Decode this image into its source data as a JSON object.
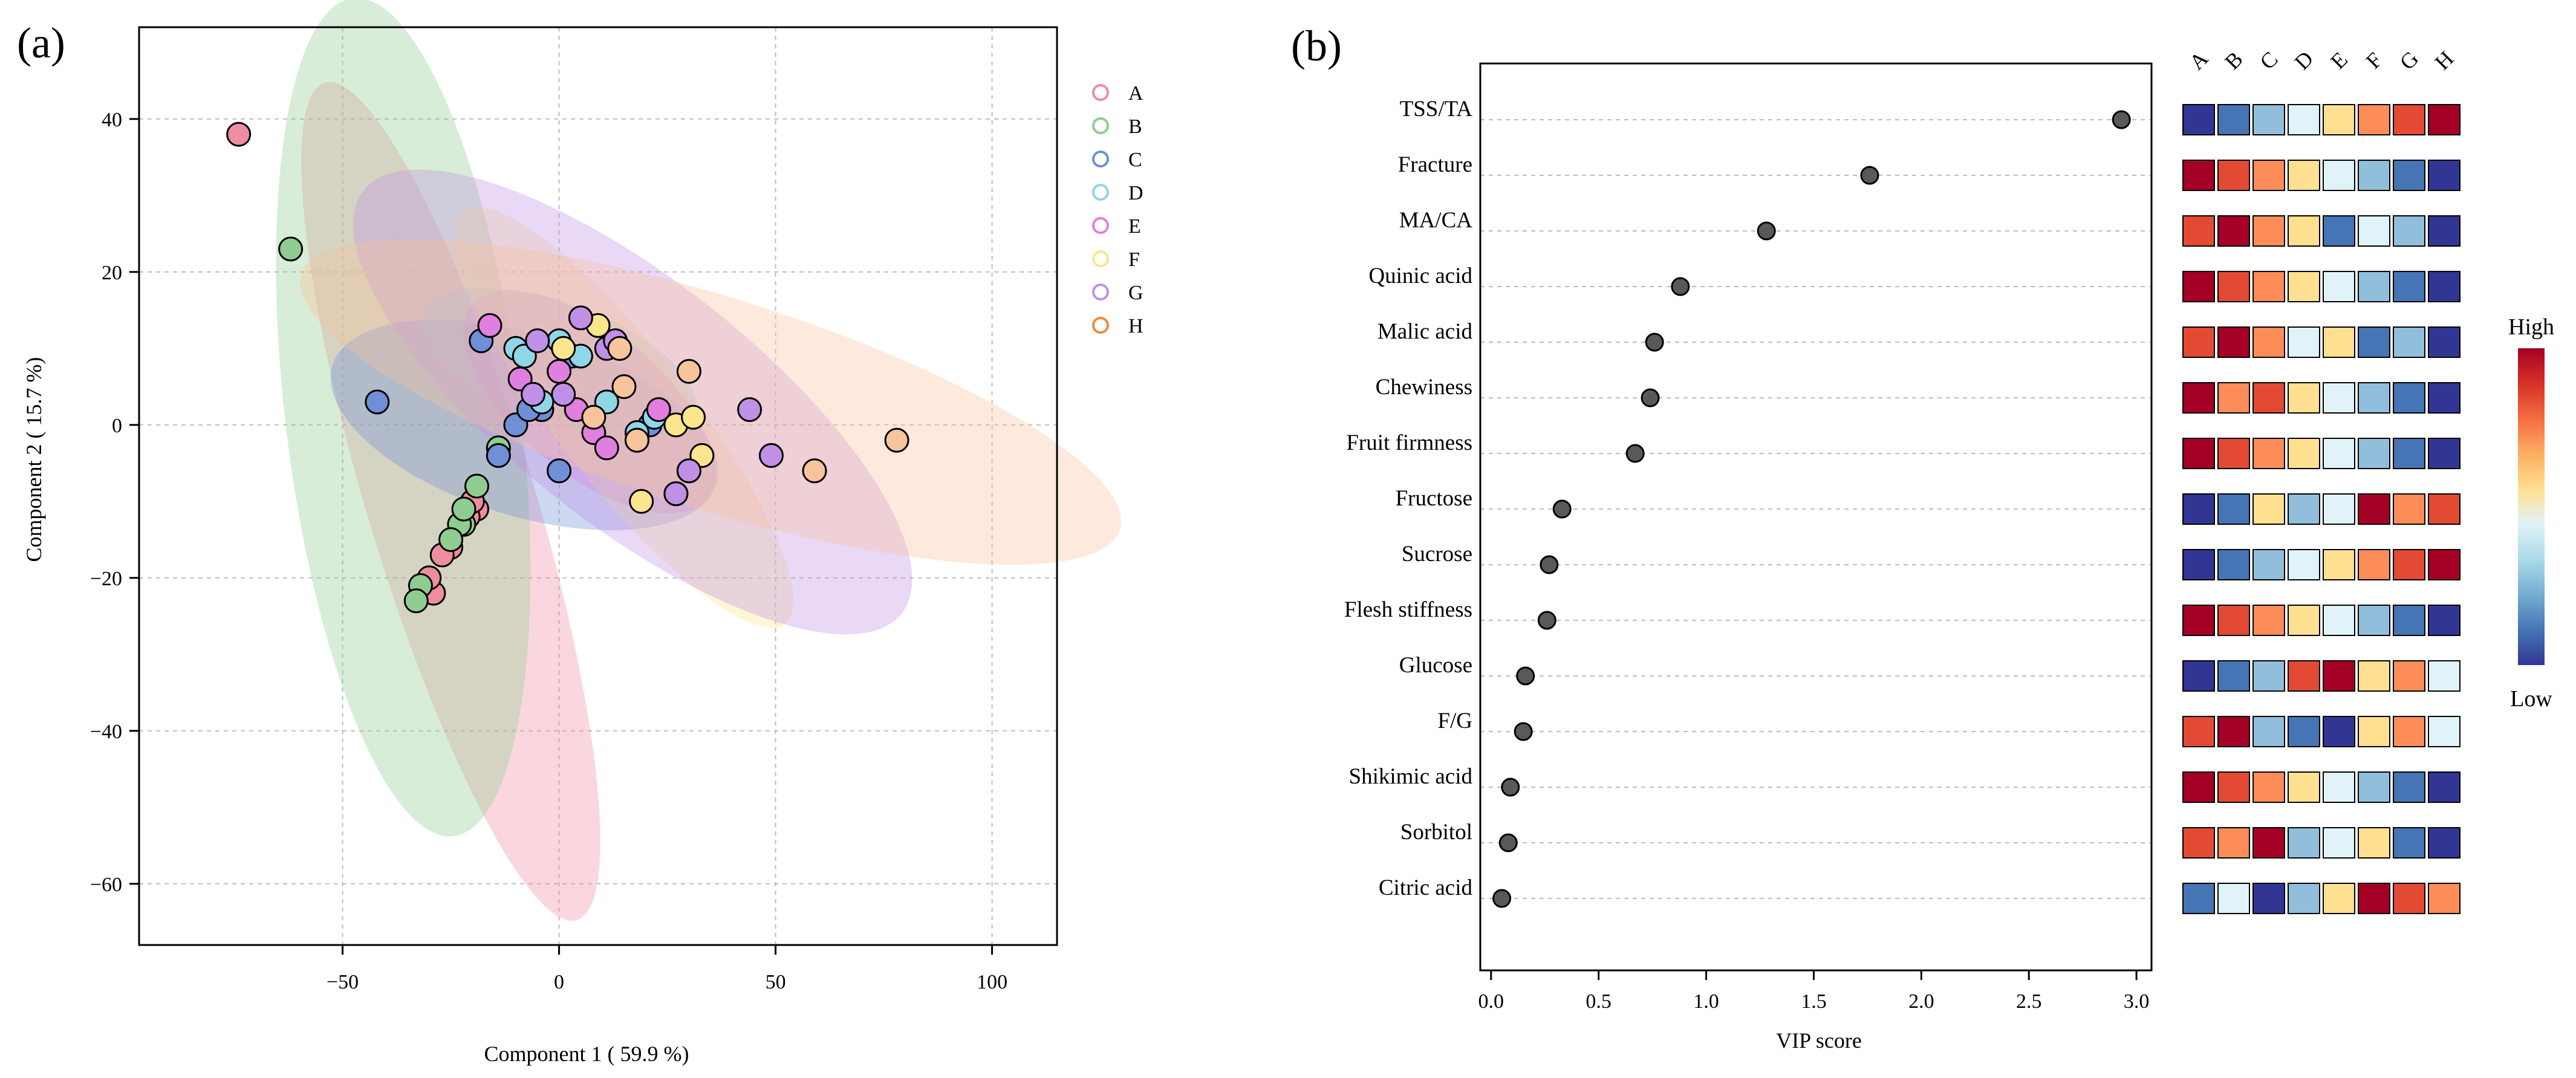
{
  "figure": {
    "panel_a_label": "(a)",
    "panel_b_label": "(b)"
  },
  "chart_data": [
    {
      "type": "scatter",
      "title": "",
      "xlabel": "Component 1 ( 59.9 %)",
      "ylabel": "Component 2 ( 15.7 %)",
      "xlim": [
        -97,
        115
      ],
      "ylim": [
        -68,
        52
      ],
      "xticks": [
        -50,
        0,
        50,
        100
      ],
      "xtick_labels": [
        "−50",
        "0",
        "50",
        "100"
      ],
      "yticks": [
        -60,
        -40,
        -20,
        0,
        20,
        40
      ],
      "ytick_labels": [
        "−60",
        "−40",
        "−20",
        "0",
        "20",
        "40"
      ],
      "grid": true,
      "legend_position": "top-right-outside",
      "series": [
        {
          "name": "A",
          "color": "#f08ca0",
          "ellipse": {
            "cx": -25,
            "cy": -10,
            "rx": 62,
            "ry": 16,
            "angle": -62
          },
          "points": [
            [
              -74,
              38
            ],
            [
              -19,
              -11
            ],
            [
              -21,
              -12
            ],
            [
              -25,
              -16
            ],
            [
              -29,
              -22
            ],
            [
              -30,
              -20
            ],
            [
              -27,
              -17
            ],
            [
              -20,
              -10
            ]
          ]
        },
        {
          "name": "B",
          "color": "#8fcc8f",
          "ellipse": {
            "cx": -36,
            "cy": 1,
            "rx": 56,
            "ry": 26,
            "angle": -78
          },
          "points": [
            [
              -62,
              23
            ],
            [
              -19,
              -8
            ],
            [
              -14,
              -3
            ],
            [
              -22,
              -13
            ],
            [
              -23,
              -13
            ],
            [
              -25,
              -15
            ],
            [
              -32,
              -21
            ],
            [
              -33,
              -23
            ],
            [
              -22,
              -11
            ]
          ]
        },
        {
          "name": "C",
          "color": "#6f8fd6",
          "ellipse": {
            "cx": -8,
            "cy": 0,
            "rx": 45,
            "ry": 12,
            "angle": -10
          },
          "points": [
            [
              -42,
              3
            ],
            [
              -18,
              11
            ],
            [
              -14,
              -4
            ],
            [
              -10,
              0
            ],
            [
              -4,
              2
            ],
            [
              0,
              -6
            ],
            [
              3,
              9
            ],
            [
              21,
              0
            ],
            [
              -7,
              2
            ]
          ]
        },
        {
          "name": "D",
          "color": "#8fd6e6",
          "ellipse": {
            "cx": 0,
            "cy": 8,
            "rx": 32,
            "ry": 8,
            "angle": -12
          },
          "points": [
            [
              -10,
              10
            ],
            [
              -8,
              9
            ],
            [
              -4,
              3
            ],
            [
              0,
              11
            ],
            [
              5,
              9
            ],
            [
              11,
              3
            ],
            [
              18,
              -1
            ],
            [
              22,
              1
            ]
          ]
        },
        {
          "name": "E",
          "color": "#e07fe0",
          "ellipse": {
            "cx": 7,
            "cy": 3,
            "rx": 30,
            "ry": 10,
            "angle": -25
          },
          "points": [
            [
              -16,
              13
            ],
            [
              -9,
              6
            ],
            [
              0,
              7
            ],
            [
              4,
              2
            ],
            [
              8,
              -1
            ],
            [
              11,
              -3
            ],
            [
              18,
              -2
            ],
            [
              23,
              2
            ],
            [
              30,
              -6
            ],
            [
              27,
              -9
            ]
          ]
        },
        {
          "name": "F",
          "color": "#fce58c",
          "ellipse": {
            "cx": 15,
            "cy": 1,
            "rx": 46,
            "ry": 10,
            "angle": -36
          },
          "points": [
            [
              1,
              10
            ],
            [
              9,
              13
            ],
            [
              14,
              10
            ],
            [
              19,
              -10
            ],
            [
              27,
              0
            ],
            [
              31,
              1
            ],
            [
              33,
              -4
            ]
          ]
        },
        {
          "name": "G",
          "color": "#c08fe6",
          "ellipse": {
            "cx": 17,
            "cy": 3,
            "rx": 68,
            "ry": 17,
            "angle": -24
          },
          "points": [
            [
              -5,
              11
            ],
            [
              1,
              4
            ],
            [
              5,
              14
            ],
            [
              11,
              10
            ],
            [
              13,
              11
            ],
            [
              44,
              2
            ],
            [
              49,
              -4
            ],
            [
              27,
              -9
            ],
            [
              30,
              -6
            ],
            [
              -6,
              4
            ]
          ]
        },
        {
          "name": "H",
          "color": "#f8c49c",
          "ellipse": {
            "cx": 35,
            "cy": 3,
            "rx": 96,
            "ry": 14,
            "angle": -10
          },
          "points": [
            [
              14,
              10
            ],
            [
              15,
              5
            ],
            [
              30,
              7
            ],
            [
              59,
              -6
            ],
            [
              78,
              -2
            ],
            [
              18,
              -2
            ],
            [
              8,
              1
            ]
          ]
        }
      ]
    },
    {
      "type": "scatter",
      "title": "",
      "xlabel": "VIP score",
      "ylabel": "",
      "xlim": [
        -0.05,
        3.07
      ],
      "xticks": [
        0.0,
        0.5,
        1.0,
        1.5,
        2.0,
        2.5,
        3.0
      ],
      "xtick_labels": [
        "0.0",
        "0.5",
        "1.0",
        "1.5",
        "2.0",
        "2.5",
        "3.0"
      ],
      "grid": true,
      "categories": [
        "TSS/TA",
        "Fracture",
        "MA/CA",
        "Quinic acid",
        "Malic acid",
        "Chewiness",
        "Fruit firmness",
        "Fructose",
        "Sucrose",
        "Flesh stiffness",
        "Glucose",
        "F/G",
        "Shikimic acid",
        "Sorbitol",
        "Citric acid"
      ],
      "values": [
        2.93,
        1.76,
        1.28,
        0.88,
        0.76,
        0.74,
        0.67,
        0.33,
        0.27,
        0.26,
        0.16,
        0.15,
        0.09,
        0.08,
        0.05
      ],
      "point_color": "#595959"
    },
    {
      "type": "heatmap",
      "title": "",
      "columns": [
        "A",
        "B",
        "C",
        "D",
        "E",
        "F",
        "G",
        "H"
      ],
      "rows": [
        "TSS/TA",
        "Fracture",
        "MA/CA",
        "Quinic acid",
        "Malic acid",
        "Chewiness",
        "Fruit firmness",
        "Fructose",
        "Sucrose",
        "Flesh stiffness",
        "Glucose",
        "F/G",
        "Shikimic acid",
        "Sorbitol",
        "Citric acid"
      ],
      "values": [
        [
          0,
          1,
          2,
          3,
          4,
          5,
          6,
          7
        ],
        [
          7,
          6,
          5,
          4,
          3,
          2,
          1,
          0
        ],
        [
          6,
          7,
          5,
          4,
          1,
          3,
          2,
          0
        ],
        [
          7,
          6,
          5,
          4,
          3,
          2,
          1,
          0
        ],
        [
          6,
          7,
          5,
          3,
          4,
          1,
          2,
          0
        ],
        [
          7,
          5,
          6,
          4,
          3,
          2,
          1,
          0
        ],
        [
          7,
          6,
          5,
          4,
          3,
          2,
          1,
          0
        ],
        [
          0,
          1,
          4,
          2,
          3,
          7,
          5,
          6
        ],
        [
          0,
          1,
          2,
          3,
          4,
          5,
          6,
          7
        ],
        [
          7,
          6,
          5,
          4,
          3,
          2,
          1,
          0
        ],
        [
          0,
          1,
          2,
          6,
          7,
          4,
          5,
          3
        ],
        [
          6,
          7,
          2,
          1,
          0,
          4,
          5,
          3
        ],
        [
          7,
          6,
          5,
          4,
          3,
          2,
          1,
          0
        ],
        [
          6,
          5,
          7,
          2,
          3,
          4,
          1,
          0
        ],
        [
          1,
          3,
          0,
          2,
          4,
          7,
          6,
          5
        ]
      ],
      "value_range": [
        0,
        7
      ],
      "palette": [
        "#313695",
        "#4575b4",
        "#91bfdb",
        "#e0f3f8",
        "#fee090",
        "#fc8d59",
        "#e34a33",
        "#a50026"
      ],
      "colorbar": {
        "high_label": "High",
        "low_label": "Low",
        "stops": [
          "#313695",
          "#4575b4",
          "#74add1",
          "#abd9e9",
          "#e0f3f8",
          "#fee090",
          "#fdae61",
          "#f46d43",
          "#d73027",
          "#a50026"
        ]
      }
    }
  ]
}
